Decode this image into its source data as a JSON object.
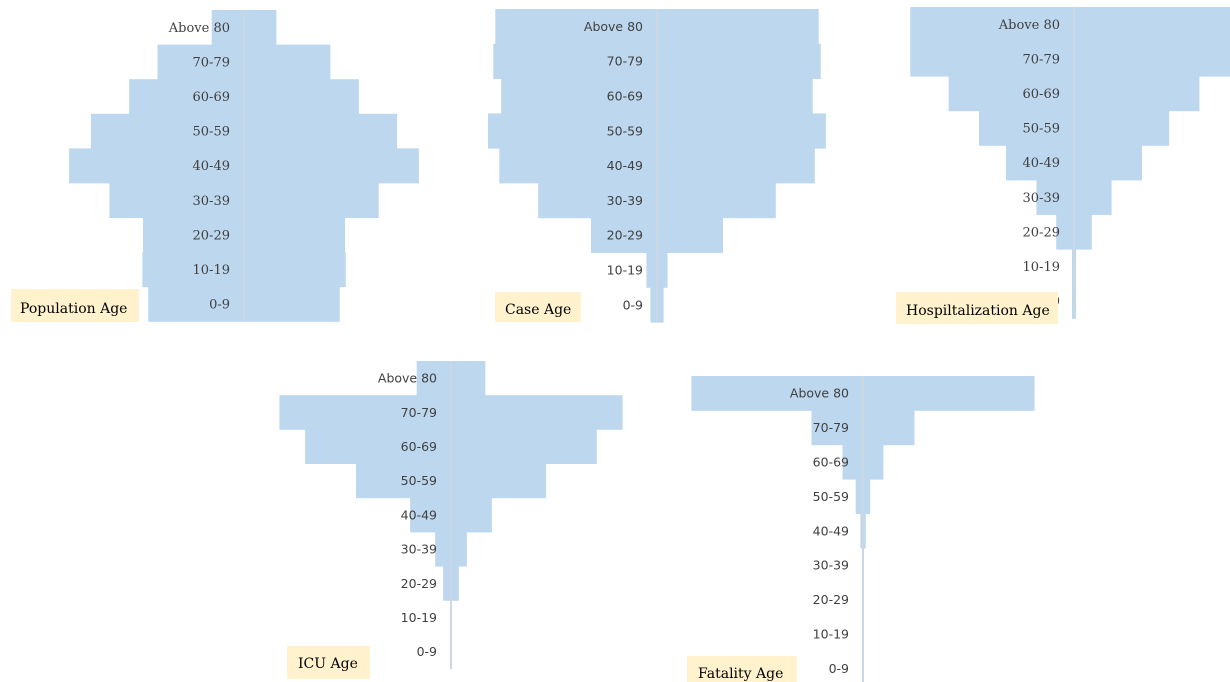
{
  "colors": {
    "bar": "#bdd7ee",
    "caption_bg": "#fff2cc",
    "axis": "#d9d9d9",
    "label": "#404040"
  },
  "chart_data": [
    {
      "type": "bar",
      "orientation": "horizontal-symmetric",
      "caption": "Population Age",
      "categories": [
        "Above 80",
        "70-79",
        "60-69",
        "50-59",
        "40-49",
        "30-39",
        "20-29",
        "10-19",
        "0-9"
      ],
      "values": [
        4.9,
        13.1,
        17.4,
        23.2,
        26.5,
        20.4,
        15.3,
        15.4,
        14.5
      ]
    },
    {
      "type": "bar",
      "orientation": "horizontal-symmetric",
      "caption": "Case Age",
      "categories": [
        "Above 80",
        "70-79",
        "60-69",
        "50-59",
        "40-49",
        "30-39",
        "20-29",
        "10-19",
        "0-9"
      ],
      "values": [
        24.5,
        24.8,
        23.6,
        25.6,
        23.9,
        18.0,
        10.0,
        1.6,
        1.0
      ]
    },
    {
      "type": "bar",
      "orientation": "horizontal-symmetric",
      "caption": "Hospiltalization Age",
      "categories": [
        "Above 80",
        "70-79",
        "60-69",
        "50-59",
        "40-49",
        "30-39",
        "20-29",
        "10-19",
        "0-9"
      ],
      "values": [
        24.8,
        24.8,
        19.0,
        14.4,
        10.3,
        5.7,
        2.7,
        0.3,
        0.3
      ]
    },
    {
      "type": "bar",
      "orientation": "horizontal-symmetric",
      "caption": "ICU Age",
      "categories": [
        "Above 80",
        "70-79",
        "60-69",
        "50-59",
        "40-49",
        "30-39",
        "20-29",
        "10-19",
        "0-9"
      ],
      "values": [
        5.2,
        26.0,
        22.1,
        14.4,
        6.2,
        2.4,
        1.2,
        0.1,
        0.1
      ]
    },
    {
      "type": "bar",
      "orientation": "horizontal-symmetric",
      "caption": "Fatality Age",
      "categories": [
        "Above 80",
        "70-79",
        "60-69",
        "50-59",
        "40-49",
        "30-39",
        "20-29",
        "10-19",
        "0-9"
      ],
      "values": [
        26.0,
        7.8,
        3.1,
        1.1,
        0.4,
        0.1,
        0.1,
        0.1,
        0.1
      ]
    }
  ]
}
